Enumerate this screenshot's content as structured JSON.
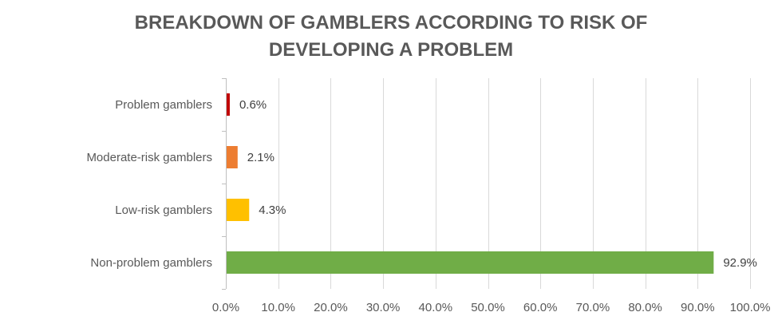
{
  "chart_data": {
    "type": "bar",
    "orientation": "horizontal",
    "title_lines": [
      "BREAKDOWN OF GAMBLERS ACCORDING TO RISK OF",
      "DEVELOPING A PROBLEM"
    ],
    "categories": [
      "Problem gamblers",
      "Moderate-risk gamblers",
      "Low-risk gamblers",
      "Non-problem gamblers"
    ],
    "values": [
      0.6,
      2.1,
      4.3,
      92.9
    ],
    "data_labels": [
      "0.6%",
      "2.1%",
      "4.3%",
      "92.9%"
    ],
    "colors": [
      "#c00000",
      "#ed7d31",
      "#ffc000",
      "#70ad47"
    ],
    "xlim": [
      0,
      100
    ],
    "x_ticks": [
      0,
      10,
      20,
      30,
      40,
      50,
      60,
      70,
      80,
      90,
      100
    ],
    "x_tick_labels": [
      "0.0%",
      "10.0%",
      "20.0%",
      "30.0%",
      "40.0%",
      "50.0%",
      "60.0%",
      "70.0%",
      "80.0%",
      "90.0%",
      "100.0%"
    ],
    "grid": true,
    "legend": "none"
  }
}
